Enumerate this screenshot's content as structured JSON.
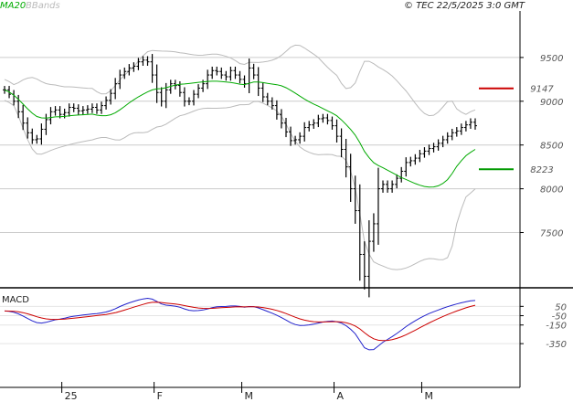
{
  "chart_data": {
    "type": "candlestick",
    "copyright": "© TEC 22/5/2025 3:0 GMT",
    "legend": [
      {
        "label": "MA20",
        "color": "#00aa00"
      },
      {
        "label": "BBands",
        "color": "#bbbbbb"
      }
    ],
    "price_axis": {
      "ylim": [
        6900,
        10000
      ],
      "ticks": [
        {
          "value": 9500,
          "label": "9500"
        },
        {
          "value": 9000,
          "label": "9000"
        },
        {
          "value": 8500,
          "label": "8500"
        },
        {
          "value": 8000,
          "label": "8000"
        },
        {
          "value": 7500,
          "label": "7500"
        }
      ]
    },
    "levels": [
      {
        "value": 9147,
        "label": "9147",
        "color": "#cc0000"
      },
      {
        "value": 8223,
        "label": "8223",
        "color": "#009900"
      }
    ],
    "macd_panel": {
      "title": "MACD",
      "ylim": [
        -800,
        220
      ],
      "ticks": [
        {
          "value": 50,
          "label": "50"
        },
        {
          "value": -50,
          "label": "-50"
        },
        {
          "value": -150,
          "label": "-150"
        },
        {
          "value": -350,
          "label": "-350"
        }
      ],
      "macd_color": "#2222cc",
      "signal_color": "#cc0000"
    },
    "x_labels": [
      {
        "index": 13,
        "label": "25"
      },
      {
        "index": 33,
        "label": "F"
      },
      {
        "index": 52,
        "label": "M"
      },
      {
        "index": 72,
        "label": "A"
      },
      {
        "index": 91,
        "label": "M"
      }
    ],
    "colors": {
      "grid": "#cccccc",
      "bar": "#000000",
      "ma": "#00aa00",
      "bands": "#bbbbbb"
    },
    "close": [
      9130,
      9080,
      9000,
      8880,
      8750,
      8640,
      8560,
      8570,
      8680,
      8790,
      8880,
      8900,
      8850,
      8870,
      8930,
      8920,
      8890,
      8900,
      8910,
      8930,
      8900,
      8950,
      9010,
      9090,
      9200,
      9300,
      9340,
      9380,
      9400,
      9450,
      9470,
      9450,
      9300,
      9100,
      9000,
      9130,
      9200,
      9180,
      9100,
      9000,
      9000,
      9080,
      9150,
      9200,
      9300,
      9350,
      9340,
      9300,
      9280,
      9350,
      9300,
      9250,
      9200,
      9380,
      9300,
      9150,
      9050,
      9000,
      8950,
      8850,
      8750,
      8650,
      8550,
      8560,
      8600,
      8700,
      8730,
      8750,
      8800,
      8810,
      8780,
      8720,
      8600,
      8450,
      8250,
      8000,
      7750,
      7250,
      7000,
      7400,
      7600,
      8000,
      8050,
      8000,
      8050,
      8120,
      8200,
      8300,
      8320,
      8350,
      8400,
      8430,
      8460,
      8480,
      8520,
      8560,
      8600,
      8640,
      8660,
      8700,
      8730,
      8760,
      8720
    ]
  }
}
